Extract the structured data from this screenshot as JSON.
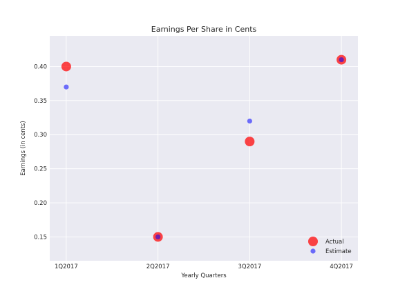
{
  "chart_data": {
    "type": "scatter",
    "title": "Earnings Per Share in Cents",
    "xlabel": "Yearly Quarters",
    "ylabel": "Earnings (in cents)",
    "categories": [
      "1Q2017",
      "2Q2017",
      "3Q2017",
      "4Q2017"
    ],
    "ylim": [
      0.115,
      0.445
    ],
    "yticks": [
      "0.15",
      "0.20",
      "0.25",
      "0.30",
      "0.35",
      "0.40"
    ],
    "grid": true,
    "legend_position": "lower-right",
    "background_color": "#EAEAF2",
    "series": [
      {
        "name": "Actual",
        "color": "#FF0000",
        "values": [
          0.4,
          0.15,
          0.29,
          0.41
        ]
      },
      {
        "name": "Estimate",
        "color": "#0000FF",
        "values": [
          0.37,
          0.15,
          0.32,
          0.41
        ]
      }
    ]
  }
}
